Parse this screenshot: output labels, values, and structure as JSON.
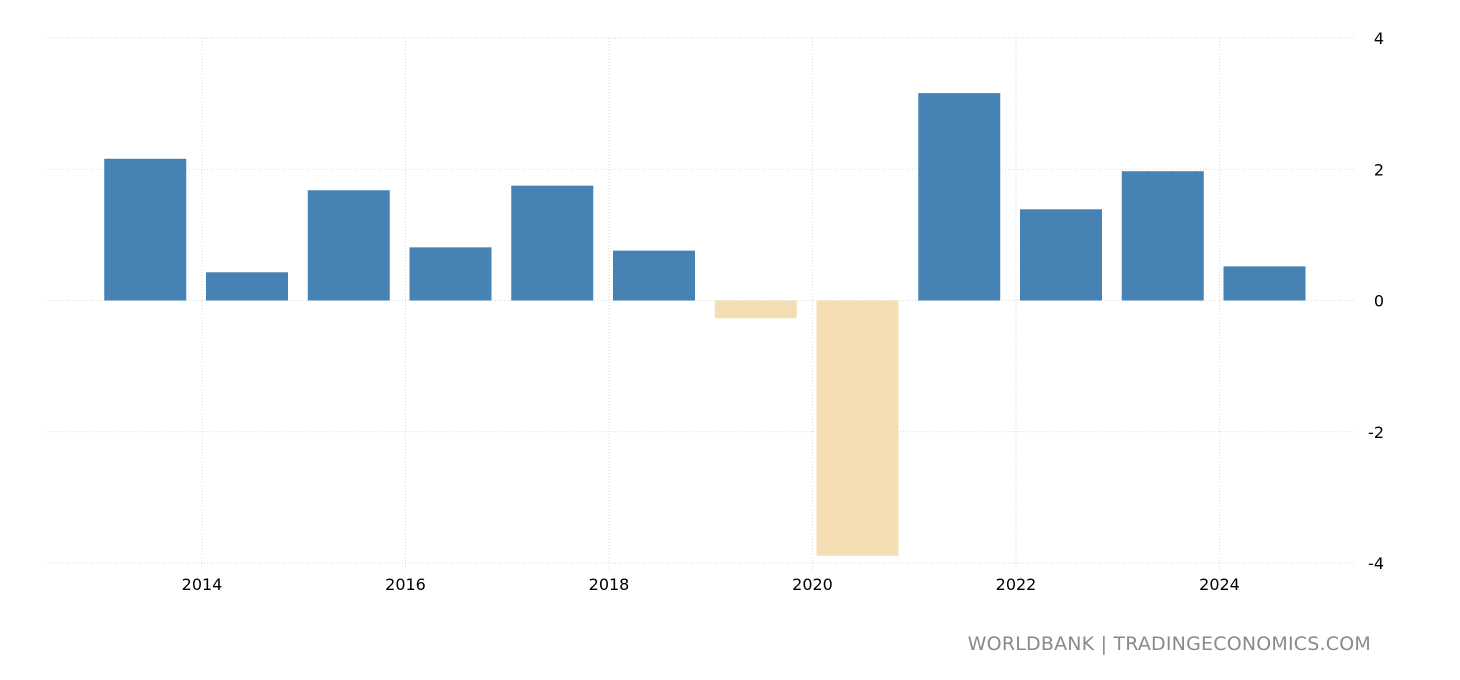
{
  "chart_data": {
    "type": "bar",
    "categories": [
      "2013",
      "2014",
      "2015",
      "2016",
      "2017",
      "2018",
      "2019",
      "2020",
      "2021",
      "2022",
      "2023",
      "2024"
    ],
    "values": [
      2.16,
      0.43,
      1.68,
      0.81,
      1.75,
      0.76,
      -0.27,
      -3.89,
      3.16,
      1.39,
      1.97,
      0.52
    ],
    "title": "",
    "xlabel": "",
    "ylabel": "",
    "ylim": [
      -4,
      4
    ],
    "yticks": [
      4,
      2,
      0,
      -2,
      -4
    ],
    "xticks": [
      "2014",
      "2016",
      "2018",
      "2020",
      "2022",
      "2024"
    ],
    "grid": true,
    "y_axis_side": "right",
    "colors": {
      "positive": "#4682b4",
      "negative": "#f5deb3",
      "grid": "#d9d9d9"
    }
  },
  "footer": {
    "source": "WORLDBANK | TRADINGECONOMICS.COM"
  }
}
